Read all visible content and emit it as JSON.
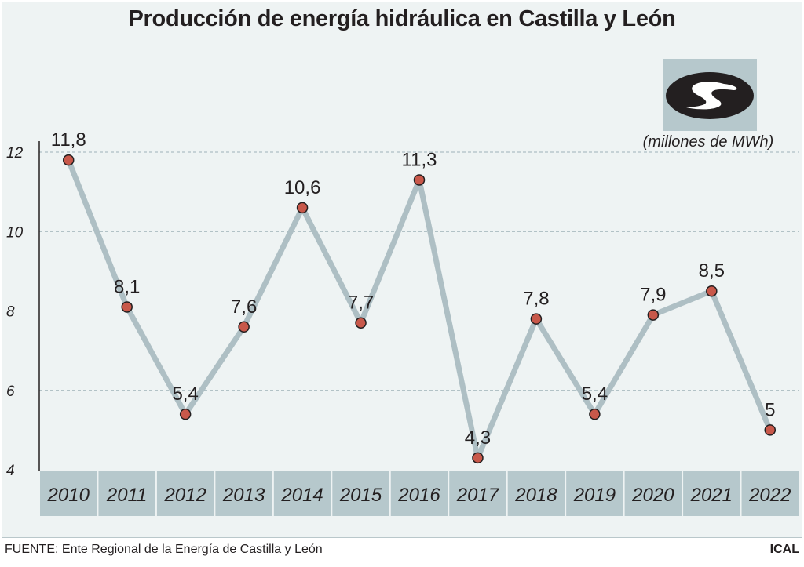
{
  "title": "Producción de energía hidráulica en Castilla y León",
  "units_note": "(millones de MWh)",
  "footer": {
    "source": "FUENTE: Ente Regional de la Energía de Castilla y León",
    "brand": "ICAL"
  },
  "logo": {
    "icon": "swirl-logo-icon"
  },
  "colors": {
    "line": "#aebfc4",
    "point_fill": "#c8584a",
    "point_stroke": "#231f20",
    "category_band": "#b6c8cc",
    "grid": "#9db2b8",
    "text": "#231f20"
  },
  "chart_data": {
    "type": "line",
    "categories": [
      "2010",
      "2011",
      "2012",
      "2013",
      "2014",
      "2015",
      "2016",
      "2017",
      "2018",
      "2019",
      "2020",
      "2021",
      "2022"
    ],
    "series": [
      {
        "values": [
          11.8,
          8.1,
          5.4,
          7.6,
          10.6,
          7.7,
          11.3,
          4.3,
          7.8,
          5.4,
          7.9,
          8.5,
          5
        ]
      }
    ],
    "data_labels": [
      "11,8",
      "8,1",
      "5,4",
      "7,6",
      "10,6",
      "7,7",
      "11,3",
      "4,3",
      "7,8",
      "5,4",
      "7,9",
      "8,5",
      "5"
    ],
    "y_ticks": [
      4,
      6,
      8,
      10,
      12
    ],
    "ylim": [
      4,
      12
    ],
    "grid": true,
    "legend": "none"
  }
}
